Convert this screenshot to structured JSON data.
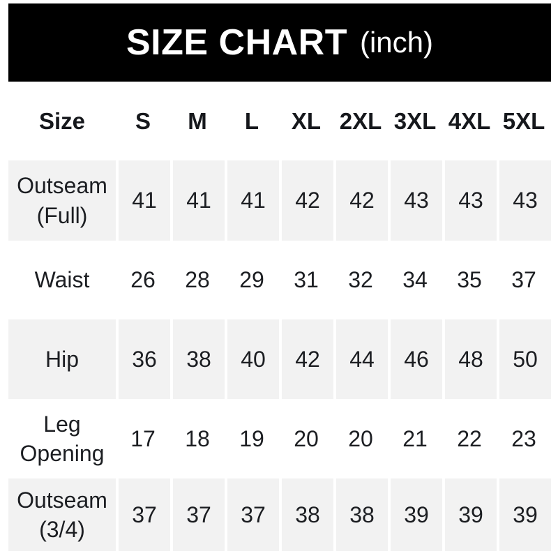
{
  "banner": {
    "title": "SIZE CHART",
    "unit": "(inch)",
    "bg_color": "#000000",
    "text_color": "#ffffff"
  },
  "table": {
    "columns": [
      "Size",
      "S",
      "M",
      "L",
      "XL",
      "2XL",
      "3XL",
      "4XL",
      "5XL"
    ],
    "rows": [
      {
        "label": "Outseam (Full)",
        "values": [
          "41",
          "41",
          "41",
          "42",
          "42",
          "43",
          "43",
          "43"
        ]
      },
      {
        "label": "Waist",
        "values": [
          "26",
          "28",
          "29",
          "31",
          "32",
          "34",
          "35",
          "37"
        ]
      },
      {
        "label": "Hip",
        "values": [
          "36",
          "38",
          "40",
          "42",
          "44",
          "46",
          "48",
          "50"
        ]
      },
      {
        "label": "Leg Opening",
        "values": [
          "17",
          "18",
          "19",
          "20",
          "20",
          "21",
          "22",
          "23"
        ]
      },
      {
        "label": "Outseam (3/4)",
        "values": [
          "37",
          "37",
          "37",
          "38",
          "38",
          "39",
          "39",
          "39"
        ]
      }
    ],
    "colors": {
      "shaded_row_bg": "#f2f2f2",
      "plain_row_bg": "#ffffff",
      "text": "#1c1e22",
      "separator": "#ffffff"
    }
  }
}
